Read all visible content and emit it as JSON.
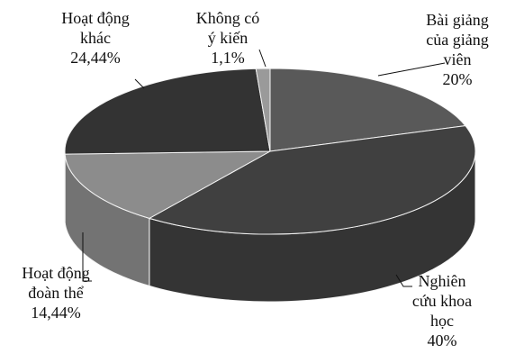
{
  "chart_data": {
    "type": "pie",
    "style": "3d",
    "title": "",
    "legend": "none",
    "slices": [
      {
        "label_lines": [
          "Bài giảng",
          "của giảng",
          "viên"
        ],
        "value_text": "20%",
        "value": 20,
        "color": "#595959"
      },
      {
        "label_lines": [
          "Nghiên",
          "cứu khoa",
          "học"
        ],
        "value_text": "40%",
        "value": 40,
        "color": "#404040"
      },
      {
        "label_lines": [
          "Hoạt động",
          "đoàn thể"
        ],
        "value_text": "14,44%",
        "value": 14.44,
        "color": "#8c8c8c"
      },
      {
        "label_lines": [
          "Hoạt động",
          "khác"
        ],
        "value_text": "24,44%",
        "value": 24.44,
        "color": "#333333"
      },
      {
        "label_lines": [
          "Không có",
          "ý kiến"
        ],
        "value_text": "1,1%",
        "value": 1.1,
        "color": "#9a9a9a"
      }
    ]
  }
}
